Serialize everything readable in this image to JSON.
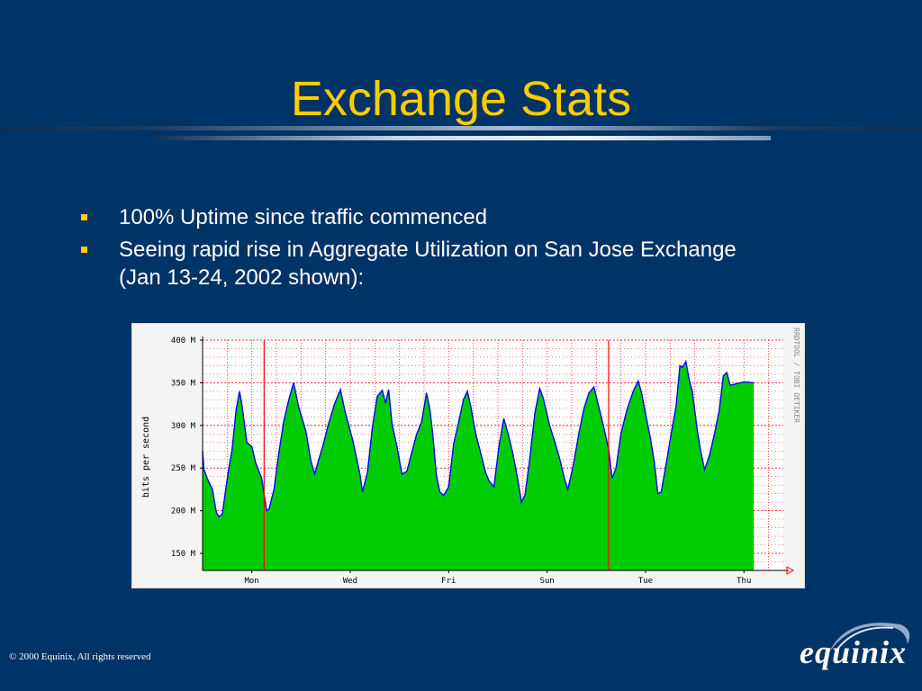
{
  "slide": {
    "title": "Exchange Stats",
    "bullets": [
      "100% Uptime since traffic commenced",
      "Seeing rapid rise in Aggregate Utilization on San Jose Exchange (Jan 13-24, 2002 shown):"
    ],
    "footer": "© 2000 Equinix, All rights reserved",
    "logo_text": "equinix"
  },
  "colors": {
    "background": "#003366",
    "title": "#FFCC00",
    "bullet": "#FFCC00",
    "area_fill": "#00CC00",
    "area_line": "#0000FF",
    "grid": "#FF0000"
  },
  "chart_data": {
    "type": "area",
    "ylabel": "bits per second",
    "side_label": "RRDTOOL / TOBI OETIKER",
    "ylim": [
      130,
      400
    ],
    "y_ticks": [
      {
        "value": 150,
        "label": "150 M"
      },
      {
        "value": 200,
        "label": "200 M"
      },
      {
        "value": 250,
        "label": "250 M"
      },
      {
        "value": 300,
        "label": "300 M"
      },
      {
        "value": 350,
        "label": "350 M"
      },
      {
        "value": 400,
        "label": "400 M"
      }
    ],
    "x_range": [
      0,
      11.8
    ],
    "x_ticks": [
      {
        "value": 1,
        "label": "Mon"
      },
      {
        "value": 3,
        "label": "Wed"
      },
      {
        "value": 5,
        "label": "Fri"
      },
      {
        "value": 7,
        "label": "Sun"
      },
      {
        "value": 9,
        "label": "Tue"
      },
      {
        "value": 11,
        "label": "Thu"
      }
    ],
    "week_start_lines": [
      1.25,
      8.25
    ],
    "series": [
      {
        "values": [
          [
            0.0,
            270
          ],
          [
            0.03,
            248
          ],
          [
            0.1,
            237
          ],
          [
            0.2,
            225
          ],
          [
            0.28,
            198
          ],
          [
            0.33,
            193
          ],
          [
            0.4,
            196
          ],
          [
            0.52,
            245
          ],
          [
            0.6,
            272
          ],
          [
            0.68,
            318
          ],
          [
            0.75,
            340
          ],
          [
            0.8,
            324
          ],
          [
            0.9,
            280
          ],
          [
            1.0,
            275
          ],
          [
            1.08,
            256
          ],
          [
            1.2,
            238
          ],
          [
            1.3,
            200
          ],
          [
            1.35,
            202
          ],
          [
            1.45,
            225
          ],
          [
            1.55,
            268
          ],
          [
            1.65,
            305
          ],
          [
            1.75,
            330
          ],
          [
            1.85,
            350
          ],
          [
            1.95,
            322
          ],
          [
            2.1,
            293
          ],
          [
            2.2,
            258
          ],
          [
            2.28,
            243
          ],
          [
            2.35,
            258
          ],
          [
            2.45,
            277
          ],
          [
            2.55,
            300
          ],
          [
            2.68,
            325
          ],
          [
            2.8,
            342
          ],
          [
            2.9,
            315
          ],
          [
            3.05,
            283
          ],
          [
            3.2,
            242
          ],
          [
            3.25,
            222
          ],
          [
            3.35,
            245
          ],
          [
            3.45,
            298
          ],
          [
            3.55,
            334
          ],
          [
            3.65,
            341
          ],
          [
            3.72,
            326
          ],
          [
            3.78,
            342
          ],
          [
            3.85,
            302
          ],
          [
            3.95,
            275
          ],
          [
            4.05,
            243
          ],
          [
            4.15,
            246
          ],
          [
            4.25,
            268
          ],
          [
            4.35,
            290
          ],
          [
            4.45,
            304
          ],
          [
            4.55,
            338
          ],
          [
            4.62,
            318
          ],
          [
            4.68,
            288
          ],
          [
            4.75,
            242
          ],
          [
            4.82,
            222
          ],
          [
            4.9,
            218
          ],
          [
            5.0,
            228
          ],
          [
            5.1,
            278
          ],
          [
            5.2,
            303
          ],
          [
            5.3,
            330
          ],
          [
            5.38,
            340
          ],
          [
            5.45,
            322
          ],
          [
            5.55,
            290
          ],
          [
            5.65,
            268
          ],
          [
            5.75,
            245
          ],
          [
            5.82,
            235
          ],
          [
            5.92,
            228
          ],
          [
            6.02,
            275
          ],
          [
            6.12,
            308
          ],
          [
            6.2,
            292
          ],
          [
            6.3,
            268
          ],
          [
            6.4,
            238
          ],
          [
            6.48,
            210
          ],
          [
            6.55,
            218
          ],
          [
            6.65,
            262
          ],
          [
            6.75,
            314
          ],
          [
            6.85,
            343
          ],
          [
            6.92,
            332
          ],
          [
            7.05,
            300
          ],
          [
            7.15,
            282
          ],
          [
            7.25,
            262
          ],
          [
            7.35,
            238
          ],
          [
            7.42,
            225
          ],
          [
            7.52,
            250
          ],
          [
            7.65,
            292
          ],
          [
            7.75,
            320
          ],
          [
            7.85,
            338
          ],
          [
            7.95,
            345
          ],
          [
            8.05,
            322
          ],
          [
            8.15,
            298
          ],
          [
            8.25,
            272
          ],
          [
            8.32,
            238
          ],
          [
            8.4,
            250
          ],
          [
            8.5,
            290
          ],
          [
            8.62,
            318
          ],
          [
            8.75,
            340
          ],
          [
            8.85,
            352
          ],
          [
            8.92,
            338
          ],
          [
            9.02,
            308
          ],
          [
            9.1,
            285
          ],
          [
            9.18,
            256
          ],
          [
            9.25,
            220
          ],
          [
            9.32,
            222
          ],
          [
            9.45,
            265
          ],
          [
            9.55,
            300
          ],
          [
            9.62,
            322
          ],
          [
            9.7,
            370
          ],
          [
            9.75,
            368
          ],
          [
            9.82,
            375
          ],
          [
            9.88,
            355
          ],
          [
            9.95,
            340
          ],
          [
            10.05,
            295
          ],
          [
            10.12,
            270
          ],
          [
            10.2,
            248
          ],
          [
            10.3,
            265
          ],
          [
            10.4,
            290
          ],
          [
            10.5,
            318
          ],
          [
            10.58,
            358
          ],
          [
            10.65,
            362
          ],
          [
            10.72,
            347
          ],
          [
            11.0,
            351
          ],
          [
            11.2,
            350
          ]
        ]
      }
    ]
  }
}
